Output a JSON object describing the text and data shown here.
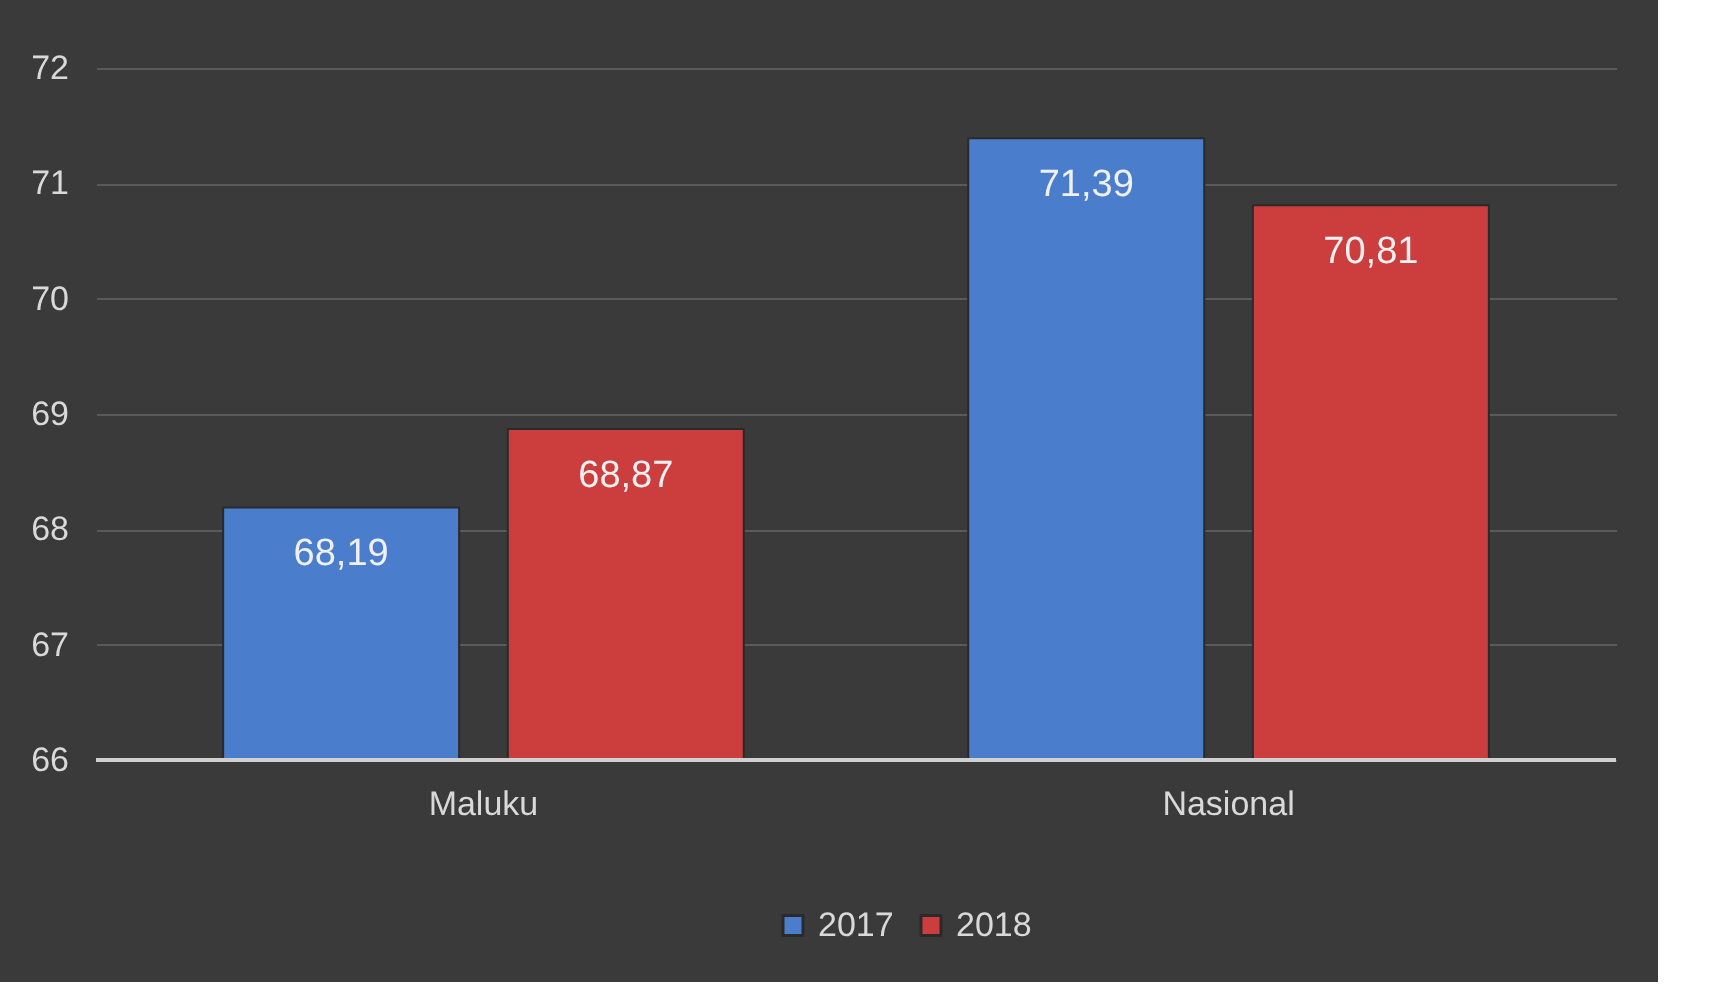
{
  "chart_data": {
    "type": "bar",
    "categories": [
      "Maluku",
      "Nasional"
    ],
    "series": [
      {
        "name": "2017",
        "color": "#4a7dcc",
        "values": [
          68.19,
          71.39
        ],
        "value_labels": [
          "68,19",
          "71,39"
        ]
      },
      {
        "name": "2018",
        "color": "#cc3e3e",
        "values": [
          68.87,
          70.81
        ],
        "value_labels": [
          "68,87",
          "70,81"
        ]
      }
    ],
    "ylim": [
      66,
      72
    ],
    "yticks": [
      66,
      67,
      68,
      69,
      70,
      71,
      72
    ],
    "grid": "y",
    "legend": "bottom"
  }
}
